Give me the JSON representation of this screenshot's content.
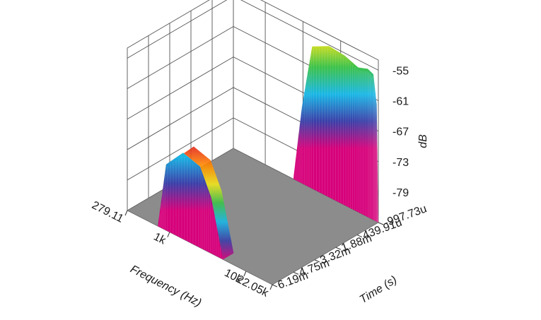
{
  "chart_data": {
    "type": "waterfall-3d",
    "title": "",
    "xlabel": "Frequency (Hz)",
    "ylabel": "Time (s)",
    "zlabel": "dB",
    "x_scale": "log",
    "x_ticks": [
      "279.11",
      "1k",
      "10k",
      "22.05k"
    ],
    "x_tick_values": [
      279.11,
      1000,
      10000,
      22050
    ],
    "y_ticks": [
      "-997.73u",
      "439.91u",
      "1.88m",
      "3.32m",
      "4.75m",
      "6.19m"
    ],
    "y_tick_values": [
      -0.00099773,
      0.00043991,
      0.00188,
      0.00332,
      0.00475,
      0.00619
    ],
    "z_ticks": [
      "-55",
      "-61",
      "-67",
      "-73",
      "-79"
    ],
    "z_tick_values": [
      -55,
      -61,
      -67,
      -73,
      -79
    ],
    "zlim": [
      -85,
      -53
    ],
    "colormap": [
      "#d6007a",
      "#3a3fa8",
      "#19b7e6",
      "#3dc24a",
      "#f2e51c",
      "#ff8a00",
      "#e3261b"
    ],
    "floor_color": "#8c8c8c",
    "grid": true,
    "surfaces": [
      {
        "time": 0.00619,
        "points": [
          [
            700,
            -85
          ],
          [
            900,
            -72
          ],
          [
            1500,
            -68
          ],
          [
            2500,
            -69
          ],
          [
            3500,
            -74
          ],
          [
            5000,
            -85
          ]
        ]
      },
      {
        "time": -0.00099773,
        "points": [
          [
            1700,
            -85
          ],
          [
            2200,
            -70
          ],
          [
            3000,
            -57
          ],
          [
            5000,
            -55.2
          ],
          [
            8000,
            -55.5
          ],
          [
            12000,
            -56.5
          ],
          [
            16000,
            -55.8
          ],
          [
            19000,
            -56.3
          ],
          [
            21000,
            -62
          ],
          [
            22050,
            -85
          ]
        ]
      }
    ]
  }
}
